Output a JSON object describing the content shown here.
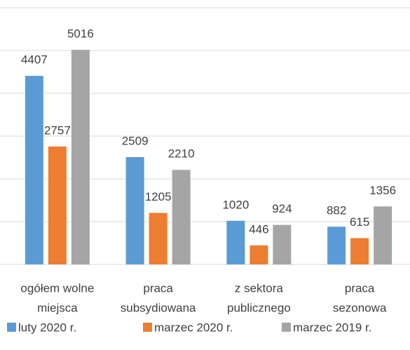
{
  "chart_data": {
    "type": "bar",
    "categories": [
      [
        "ogółem wolne",
        "miejsca"
      ],
      [
        "praca",
        "subsydiowana"
      ],
      [
        "z sektora",
        "publicznego"
      ],
      [
        "praca",
        "sezonowa"
      ]
    ],
    "series": [
      {
        "name": "luty 2020 r.",
        "color": "#5b9bd5",
        "values": [
          4407,
          2509,
          1020,
          882
        ]
      },
      {
        "name": "marzec 2020 r.",
        "color": "#ed7d31",
        "values": [
          2757,
          1205,
          446,
          615
        ]
      },
      {
        "name": "marzec 2019 r.",
        "color": "#a5a5a5",
        "values": [
          5016,
          2210,
          924,
          1356
        ]
      }
    ],
    "ylim": [
      0,
      6000
    ],
    "yticks": [
      0,
      1000,
      2000,
      3000,
      4000,
      5000,
      6000
    ],
    "grid": true,
    "legend": "bottom"
  }
}
